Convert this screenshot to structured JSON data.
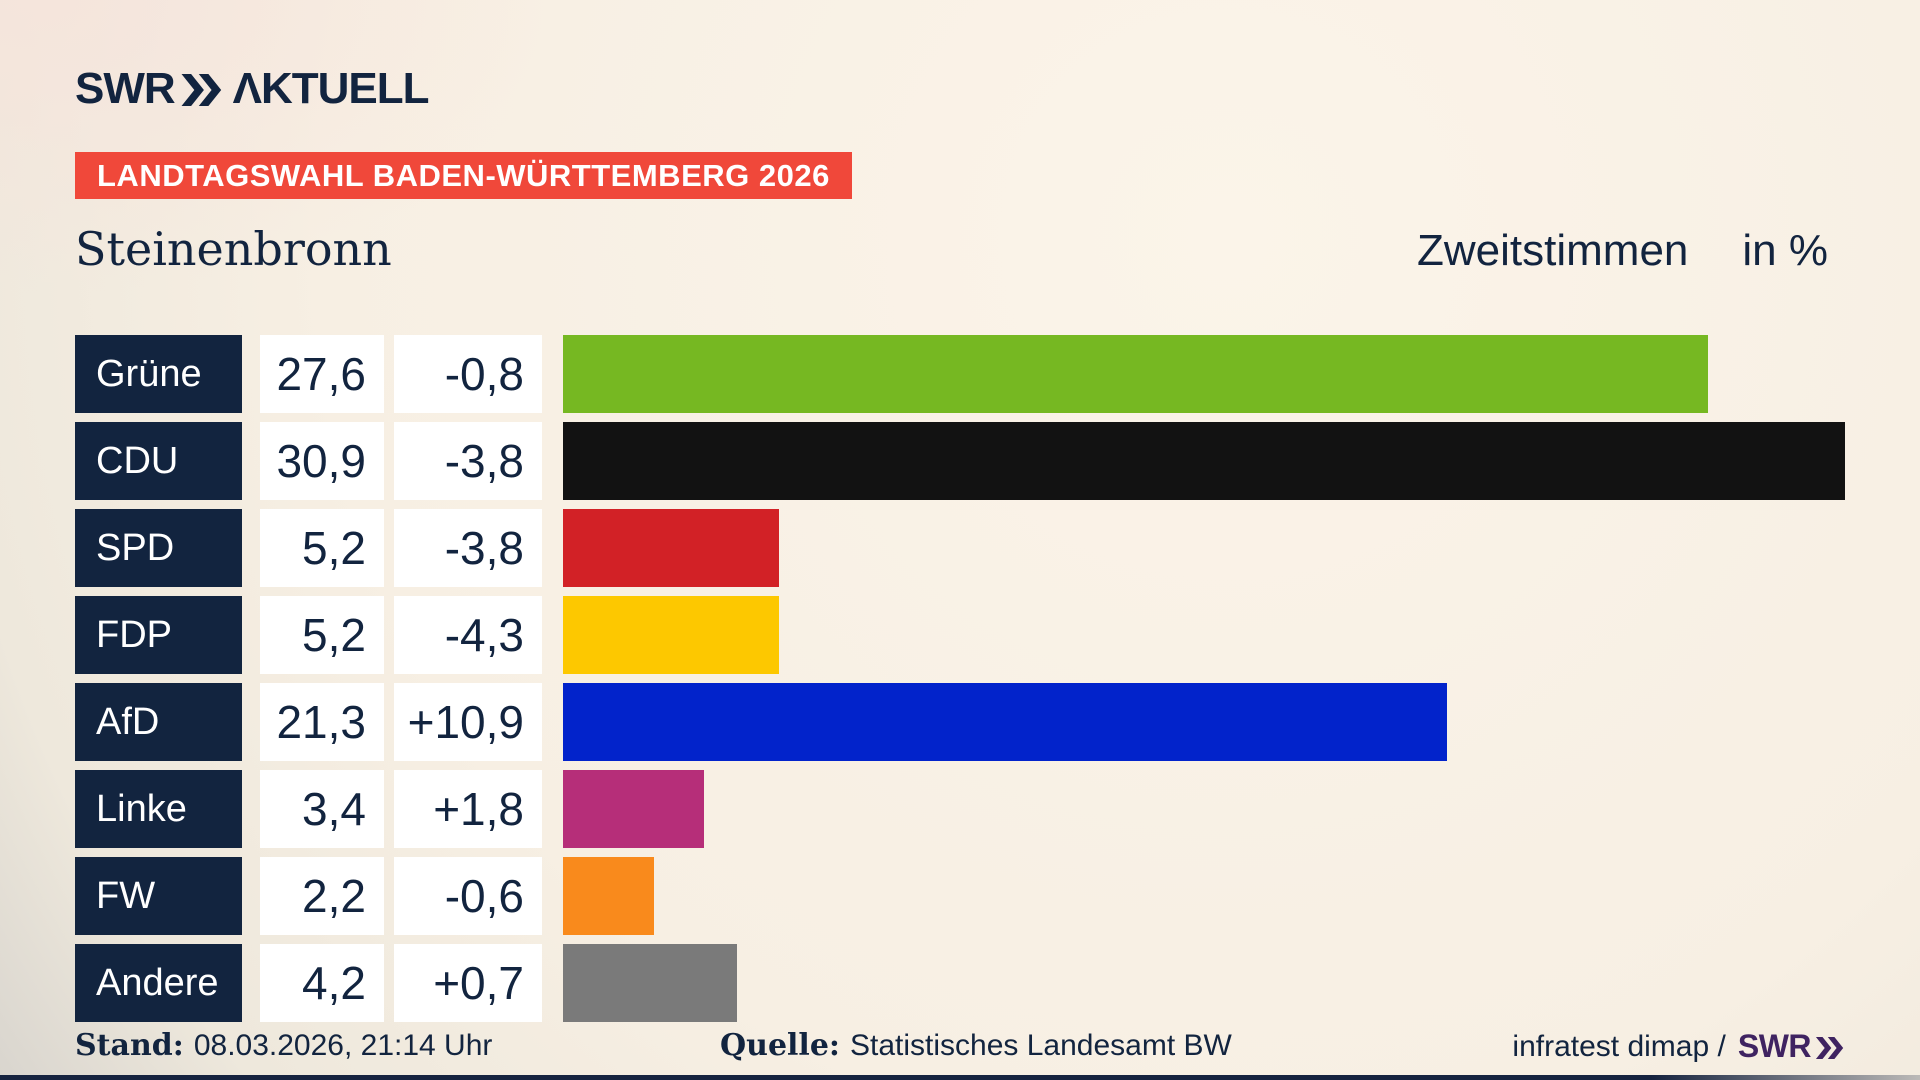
{
  "header": {
    "logo_swr": "SWR",
    "logo_aktuell": "ΛKTUELL",
    "banner": "LANDTAGSWAHL BADEN-WÜRTTEMBERG 2026"
  },
  "title": {
    "municipality": "Steinenbronn",
    "measure": "Zweitstimmen",
    "unit": "in %"
  },
  "rows": [
    {
      "party": "Grüne",
      "value": "27,6",
      "diff": "-0,8"
    },
    {
      "party": "CDU",
      "value": "30,9",
      "diff": "-3,8"
    },
    {
      "party": "SPD",
      "value": "5,2",
      "diff": "-3,8"
    },
    {
      "party": "FDP",
      "value": "5,2",
      "diff": "-4,3"
    },
    {
      "party": "AfD",
      "value": "21,3",
      "diff": "+10,9"
    },
    {
      "party": "Linke",
      "value": "3,4",
      "diff": "+1,8"
    },
    {
      "party": "FW",
      "value": "2,2",
      "diff": "-0,6"
    },
    {
      "party": "Andere",
      "value": "4,2",
      "diff": "+0,7"
    }
  ],
  "footer": {
    "stand_label": "Stand:",
    "stand_value": "08.03.2026, 21:14 Uhr",
    "quelle_label": "Quelle:",
    "quelle_value": "Statistisches Landesamt BW",
    "credit_text": "infratest dimap /",
    "credit_logo_text": "SWR"
  },
  "colors": {
    "navy": "#12243f",
    "banner_red": "#f0483a",
    "background_cream": "#f7efe3",
    "background_gray": "#c8c6c3",
    "swr_footer_purple": "#3f2361",
    "cell_white": "#ffffff"
  },
  "chart_data": {
    "type": "bar",
    "orientation": "horizontal",
    "title": "Zweitstimmen in %",
    "region": "Steinenbronn",
    "election": "Landtagswahl Baden-Württemberg 2026",
    "categories": [
      "Grüne",
      "CDU",
      "SPD",
      "FDP",
      "AfD",
      "Linke",
      "FW",
      "Andere"
    ],
    "values": [
      27.6,
      30.9,
      5.2,
      5.2,
      21.3,
      3.4,
      2.2,
      4.2
    ],
    "diffs": [
      -0.8,
      -3.8,
      -3.8,
      -4.3,
      10.9,
      1.8,
      -0.6,
      0.7
    ],
    "bar_colors": [
      "#76b822",
      "#121212",
      "#d22126",
      "#fdc800",
      "#0223cb",
      "#b62e79",
      "#f98a1c",
      "#7a7a7a"
    ],
    "xlim": [
      0,
      31
    ],
    "unit": "%",
    "grid": false,
    "legend": false,
    "source": "Statistisches Landesamt BW",
    "as_of": "08.03.2026, 21:14 Uhr"
  }
}
